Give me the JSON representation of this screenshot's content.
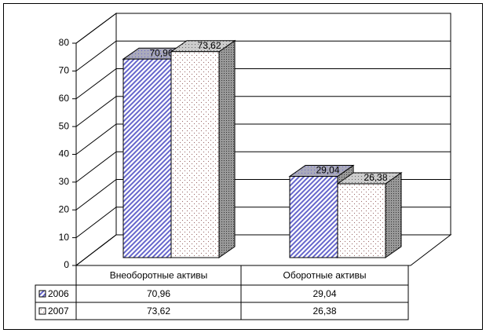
{
  "chart_data": {
    "type": "bar3d",
    "categories": [
      "Внеоборотные активы",
      "Оборотные активы"
    ],
    "series": [
      {
        "name": "2006",
        "color": "#6666cc",
        "values": [
          70.96,
          29.04
        ],
        "value_labels": [
          "70,96",
          "29,04"
        ]
      },
      {
        "name": "2007",
        "color": "#996666",
        "values": [
          73.62,
          26.38
        ],
        "value_labels": [
          "73,62",
          "26,38"
        ]
      }
    ],
    "ylim": [
      0,
      80
    ],
    "yticks": [
      0,
      10,
      20,
      30,
      40,
      50,
      60,
      70,
      80
    ],
    "grid": true,
    "data_table": true
  }
}
